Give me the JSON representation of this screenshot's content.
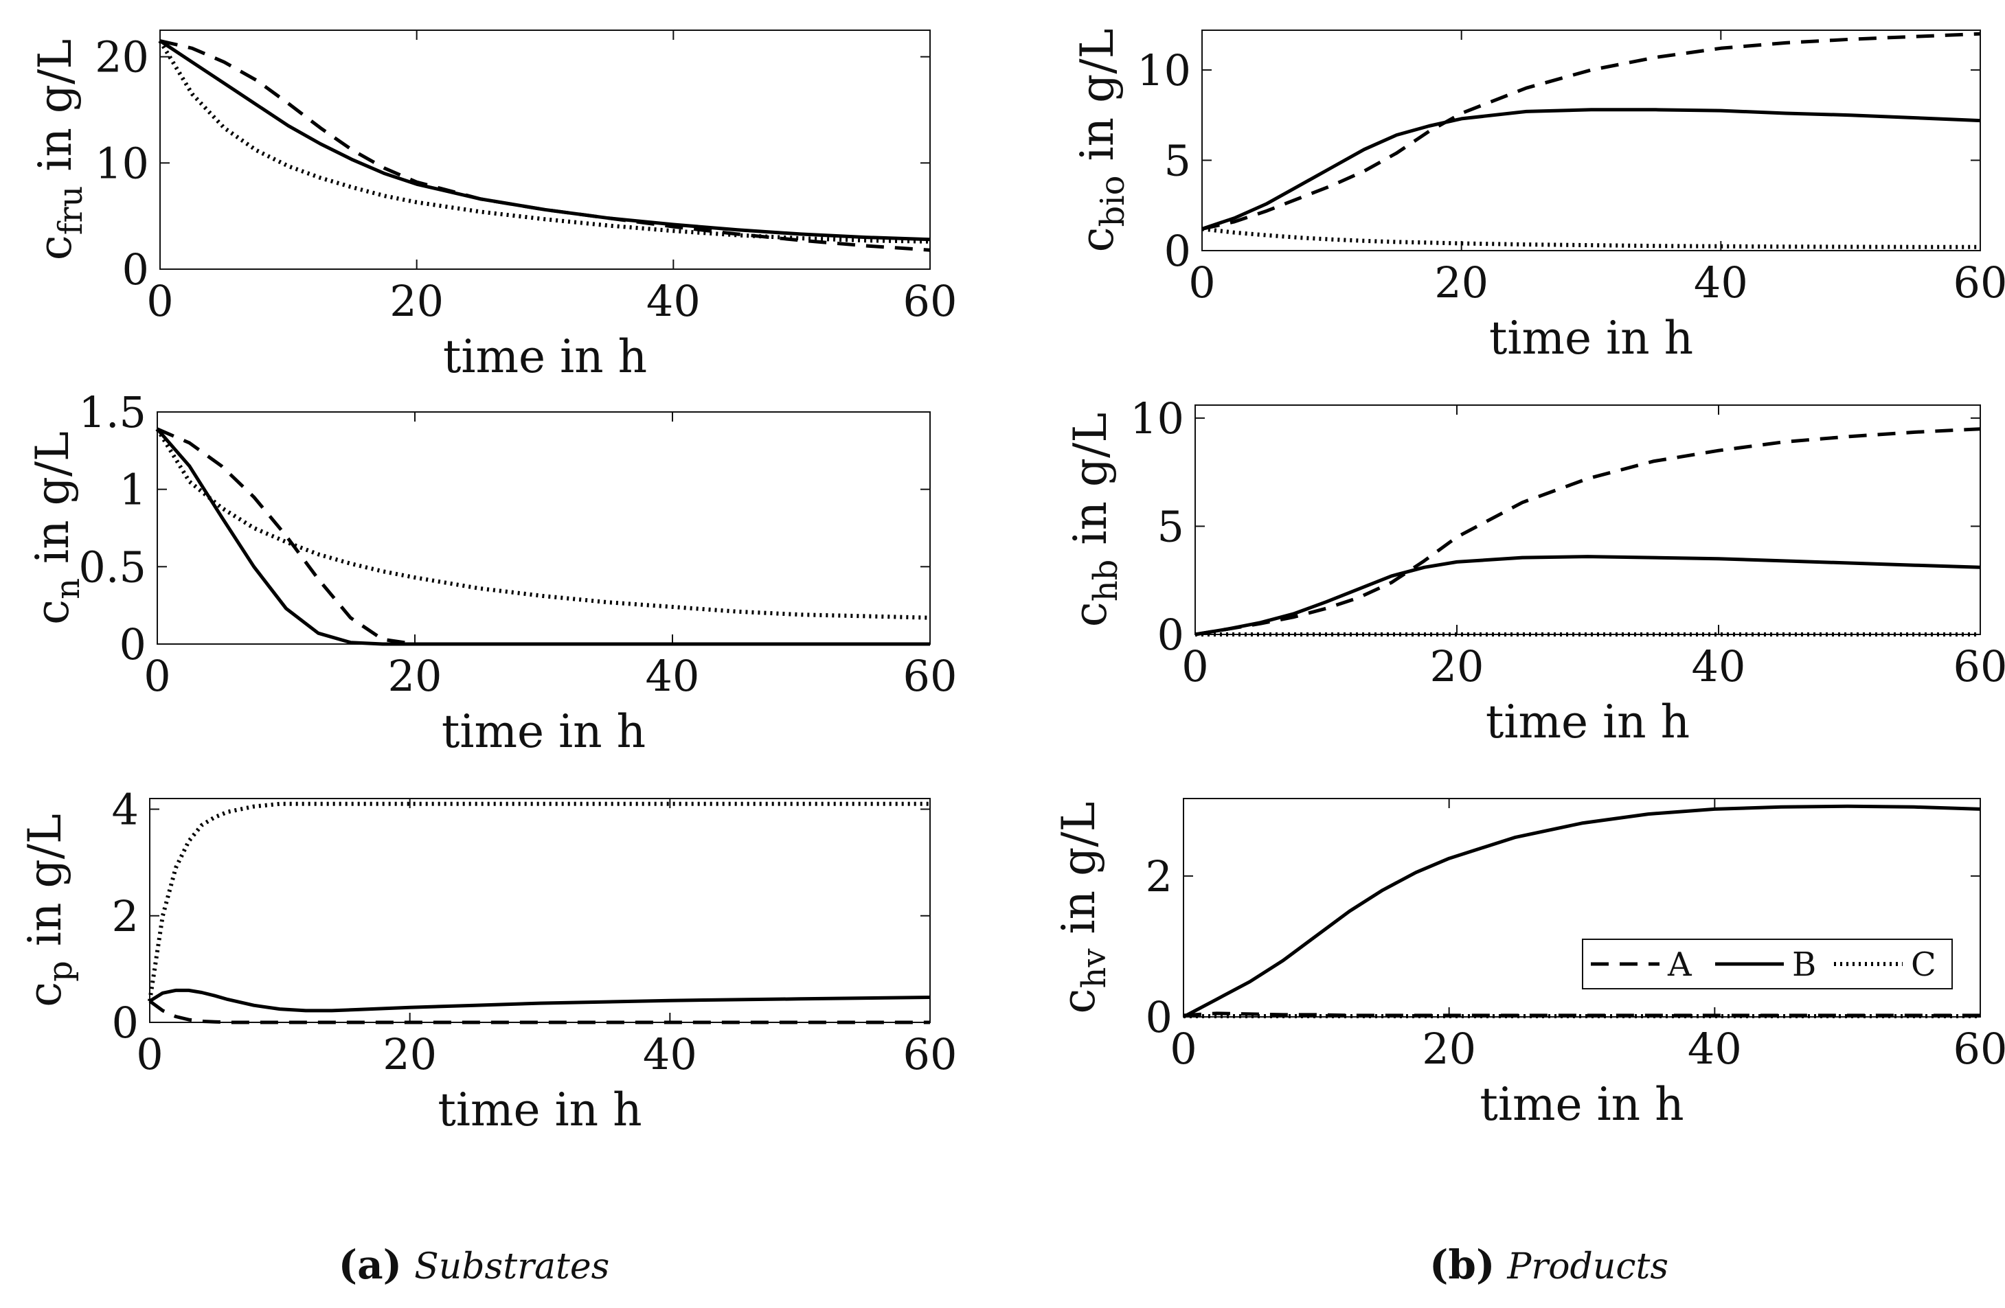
{
  "line_styles": {
    "A": {
      "dash": "dashed",
      "color": "#000000"
    },
    "B": {
      "dash": "solid",
      "color": "#000000"
    },
    "C": {
      "dash": "dotted",
      "color": "#000000"
    }
  },
  "captions": [
    {
      "label": "(a)",
      "text": "Substrates"
    },
    {
      "label": "(b)",
      "text": "Products"
    }
  ],
  "legend": {
    "entries": [
      "A",
      "B",
      "C"
    ],
    "placement": "lower-right (c_hv panel)"
  },
  "chart_data": [
    {
      "id": "cfru",
      "type": "line",
      "ylabel": {
        "main": "c",
        "sub": "fru",
        "rest": " in g/L"
      },
      "xlabel": "time in h",
      "xlim": [
        0,
        60
      ],
      "ylim": [
        0,
        22.5
      ],
      "xticks": [
        0,
        20,
        40,
        60
      ],
      "xtick_labels": [
        "0",
        "20",
        "40",
        "60"
      ],
      "yticks": [
        0,
        10,
        20
      ],
      "ytick_labels": [
        "0",
        "10",
        "20"
      ],
      "x": [
        0,
        2.5,
        5,
        7.5,
        10,
        12.5,
        15,
        17.5,
        20,
        25,
        30,
        35,
        40,
        45,
        50,
        55,
        60
      ],
      "series": [
        {
          "name": "A",
          "values": [
            21.5,
            20.8,
            19.5,
            17.8,
            15.6,
            13.3,
            11.2,
            9.5,
            8.2,
            6.6,
            5.6,
            4.8,
            4.0,
            3.3,
            2.7,
            2.2,
            1.8
          ]
        },
        {
          "name": "B",
          "values": [
            21.5,
            19.5,
            17.5,
            15.5,
            13.5,
            11.8,
            10.3,
            9.0,
            8.0,
            6.6,
            5.6,
            4.8,
            4.2,
            3.7,
            3.3,
            3.0,
            2.8
          ]
        },
        {
          "name": "C",
          "values": [
            21.5,
            16.5,
            13.3,
            11.2,
            9.7,
            8.6,
            7.7,
            6.9,
            6.3,
            5.4,
            4.7,
            4.1,
            3.6,
            3.2,
            2.9,
            2.7,
            2.6
          ]
        }
      ]
    },
    {
      "id": "cn",
      "type": "line",
      "ylabel": {
        "main": "c",
        "sub": "n",
        "rest": " in g/L"
      },
      "xlabel": "time in h",
      "xlim": [
        0,
        60
      ],
      "ylim": [
        0,
        1.5
      ],
      "xticks": [
        0,
        20,
        40,
        60
      ],
      "xtick_labels": [
        "0",
        "20",
        "40",
        "60"
      ],
      "yticks": [
        0,
        0.5,
        1,
        1.5
      ],
      "ytick_labels": [
        "0",
        "0.5",
        "1",
        "1.5"
      ],
      "x": [
        0,
        2.5,
        5,
        7.5,
        10,
        12.5,
        15,
        17.5,
        20,
        25,
        30,
        35,
        40,
        45,
        50,
        55,
        60
      ],
      "series": [
        {
          "name": "A",
          "values": [
            1.39,
            1.3,
            1.15,
            0.95,
            0.7,
            0.42,
            0.17,
            0.03,
            0.0,
            0,
            0,
            0,
            0,
            0,
            0,
            0,
            0
          ]
        },
        {
          "name": "B",
          "values": [
            1.39,
            1.15,
            0.82,
            0.5,
            0.23,
            0.07,
            0.01,
            0,
            0,
            0,
            0,
            0,
            0,
            0,
            0,
            0,
            0
          ]
        },
        {
          "name": "C",
          "values": [
            1.39,
            1.05,
            0.88,
            0.75,
            0.66,
            0.58,
            0.52,
            0.47,
            0.43,
            0.36,
            0.31,
            0.27,
            0.24,
            0.21,
            0.19,
            0.18,
            0.17
          ]
        }
      ]
    },
    {
      "id": "cp",
      "type": "line",
      "ylabel": {
        "main": "c",
        "sub": "p",
        "rest": " in g/L"
      },
      "xlabel": "time in h",
      "xlim": [
        0,
        60
      ],
      "ylim": [
        0,
        4.2
      ],
      "xticks": [
        0,
        20,
        40,
        60
      ],
      "xtick_labels": [
        "0",
        "20",
        "40",
        "60"
      ],
      "yticks": [
        0,
        2,
        4
      ],
      "ytick_labels": [
        "0",
        "2",
        "4"
      ],
      "x": [
        0,
        1,
        2,
        3,
        4,
        5,
        6,
        8,
        10,
        12,
        14,
        16,
        20,
        25,
        30,
        40,
        50,
        60
      ],
      "series": [
        {
          "name": "A",
          "values": [
            0.4,
            0.22,
            0.11,
            0.05,
            0.02,
            0.01,
            0,
            0,
            0,
            0,
            0,
            0,
            0,
            0,
            0,
            0,
            0,
            0
          ]
        },
        {
          "name": "B",
          "values": [
            0.4,
            0.55,
            0.6,
            0.6,
            0.56,
            0.5,
            0.43,
            0.32,
            0.25,
            0.22,
            0.22,
            0.24,
            0.28,
            0.32,
            0.36,
            0.41,
            0.44,
            0.47
          ]
        },
        {
          "name": "C",
          "values": [
            0.4,
            2.0,
            2.9,
            3.4,
            3.7,
            3.85,
            3.95,
            4.05,
            4.1,
            4.1,
            4.1,
            4.1,
            4.1,
            4.1,
            4.1,
            4.1,
            4.1,
            4.1
          ]
        }
      ]
    },
    {
      "id": "cbio",
      "type": "line",
      "ylabel": {
        "main": "c",
        "sub": "bio",
        "rest": " in g/L"
      },
      "xlabel": "time in h",
      "xlim": [
        0,
        60
      ],
      "ylim": [
        0,
        12.2
      ],
      "xticks": [
        0,
        20,
        40,
        60
      ],
      "xtick_labels": [
        "0",
        "20",
        "40",
        "60"
      ],
      "yticks": [
        0,
        5,
        10
      ],
      "ytick_labels": [
        "0",
        "5",
        "10"
      ],
      "x": [
        0,
        2.5,
        5,
        7.5,
        10,
        12.5,
        15,
        17.5,
        20,
        25,
        30,
        35,
        40,
        45,
        50,
        55,
        60
      ],
      "series": [
        {
          "name": "A",
          "values": [
            1.2,
            1.6,
            2.2,
            2.9,
            3.6,
            4.4,
            5.4,
            6.6,
            7.6,
            9.0,
            10.0,
            10.7,
            11.2,
            11.5,
            11.7,
            11.85,
            12.0
          ]
        },
        {
          "name": "B",
          "values": [
            1.2,
            1.8,
            2.6,
            3.6,
            4.6,
            5.6,
            6.4,
            6.9,
            7.3,
            7.7,
            7.8,
            7.8,
            7.75,
            7.6,
            7.5,
            7.35,
            7.2
          ]
        },
        {
          "name": "C",
          "values": [
            1.2,
            1.0,
            0.85,
            0.72,
            0.62,
            0.54,
            0.48,
            0.44,
            0.4,
            0.34,
            0.3,
            0.26,
            0.24,
            0.22,
            0.21,
            0.2,
            0.2
          ]
        }
      ]
    },
    {
      "id": "chb",
      "type": "line",
      "ylabel": {
        "main": "c",
        "sub": "hb",
        "rest": " in g/L"
      },
      "xlabel": "time in h",
      "xlim": [
        0,
        60
      ],
      "ylim": [
        0,
        10.6
      ],
      "xticks": [
        0,
        20,
        40,
        60
      ],
      "xtick_labels": [
        "0",
        "20",
        "40",
        "60"
      ],
      "yticks": [
        0,
        5,
        10
      ],
      "ytick_labels": [
        "0",
        "5",
        "10"
      ],
      "x": [
        0,
        2.5,
        5,
        7.5,
        10,
        12.5,
        15,
        17.5,
        20,
        25,
        30,
        35,
        40,
        45,
        50,
        55,
        60
      ],
      "series": [
        {
          "name": "A",
          "values": [
            0,
            0.25,
            0.5,
            0.8,
            1.2,
            1.7,
            2.4,
            3.4,
            4.5,
            6.1,
            7.2,
            8.0,
            8.5,
            8.9,
            9.15,
            9.35,
            9.5
          ]
        },
        {
          "name": "B",
          "values": [
            0,
            0.25,
            0.55,
            0.95,
            1.5,
            2.1,
            2.7,
            3.1,
            3.35,
            3.55,
            3.6,
            3.55,
            3.5,
            3.4,
            3.3,
            3.2,
            3.1
          ]
        },
        {
          "name": "C",
          "values": [
            0,
            0,
            0,
            0,
            0,
            0,
            0,
            0,
            0,
            0,
            0,
            0,
            0,
            0,
            0,
            0,
            0
          ]
        }
      ]
    },
    {
      "id": "chv",
      "type": "line",
      "ylabel": {
        "main": "c",
        "sub": "hv",
        "rest": " in g/L"
      },
      "xlabel": "time in h",
      "xlim": [
        0,
        60
      ],
      "ylim": [
        0,
        3.1
      ],
      "xticks": [
        0,
        20,
        40,
        60
      ],
      "xtick_labels": [
        "0",
        "20",
        "40",
        "60"
      ],
      "yticks": [
        0,
        2
      ],
      "ytick_labels": [
        "0",
        "2"
      ],
      "x": [
        0,
        2.5,
        5,
        7.5,
        10,
        12.5,
        15,
        17.5,
        20,
        25,
        30,
        35,
        40,
        45,
        50,
        55,
        60
      ],
      "series": [
        {
          "name": "A",
          "values": [
            0.02,
            0.05,
            0.04,
            0.03,
            0.03,
            0.02,
            0.02,
            0.02,
            0.02,
            0.02,
            0.02,
            0.02,
            0.02,
            0.02,
            0.02,
            0.02,
            0.02
          ]
        },
        {
          "name": "B",
          "values": [
            0,
            0.25,
            0.5,
            0.8,
            1.15,
            1.5,
            1.8,
            2.05,
            2.25,
            2.55,
            2.75,
            2.88,
            2.95,
            2.98,
            2.99,
            2.98,
            2.95
          ]
        },
        {
          "name": "C",
          "values": [
            0.01,
            0.01,
            0.01,
            0.01,
            0.01,
            0.01,
            0.01,
            0.01,
            0.01,
            0.01,
            0.01,
            0.01,
            0.01,
            0.01,
            0.01,
            0.01,
            0.01
          ]
        }
      ]
    }
  ]
}
